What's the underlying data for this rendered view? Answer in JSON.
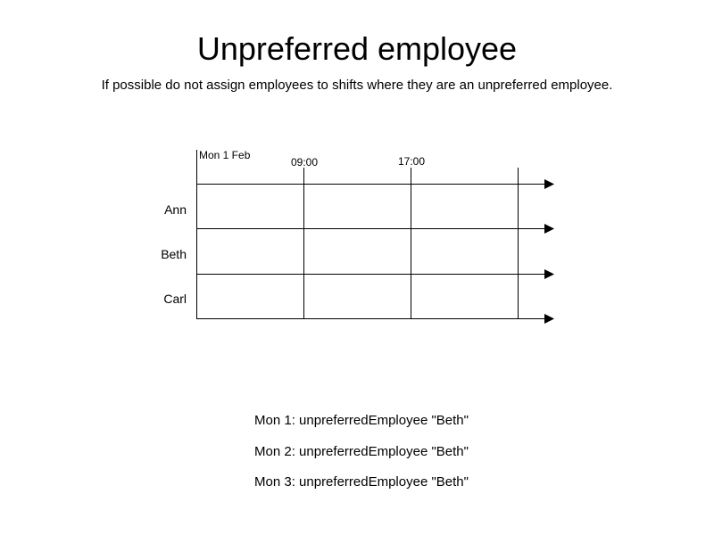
{
  "title": "Unpreferred employee",
  "subtitle": "If possible do not assign employees to shifts where they are an unpreferred employee.",
  "timeline": {
    "date_label": "Mon 1 Feb",
    "time_labels": [
      "09:00",
      "17:00"
    ],
    "employees": [
      "Ann",
      "Beth",
      "Carl"
    ]
  },
  "constraints": [
    "Mon 1: unpreferredEmployee \"Beth\"",
    "Mon 2: unpreferredEmployee \"Beth\"",
    "Mon 3: unpreferredEmployee \"Beth\""
  ]
}
